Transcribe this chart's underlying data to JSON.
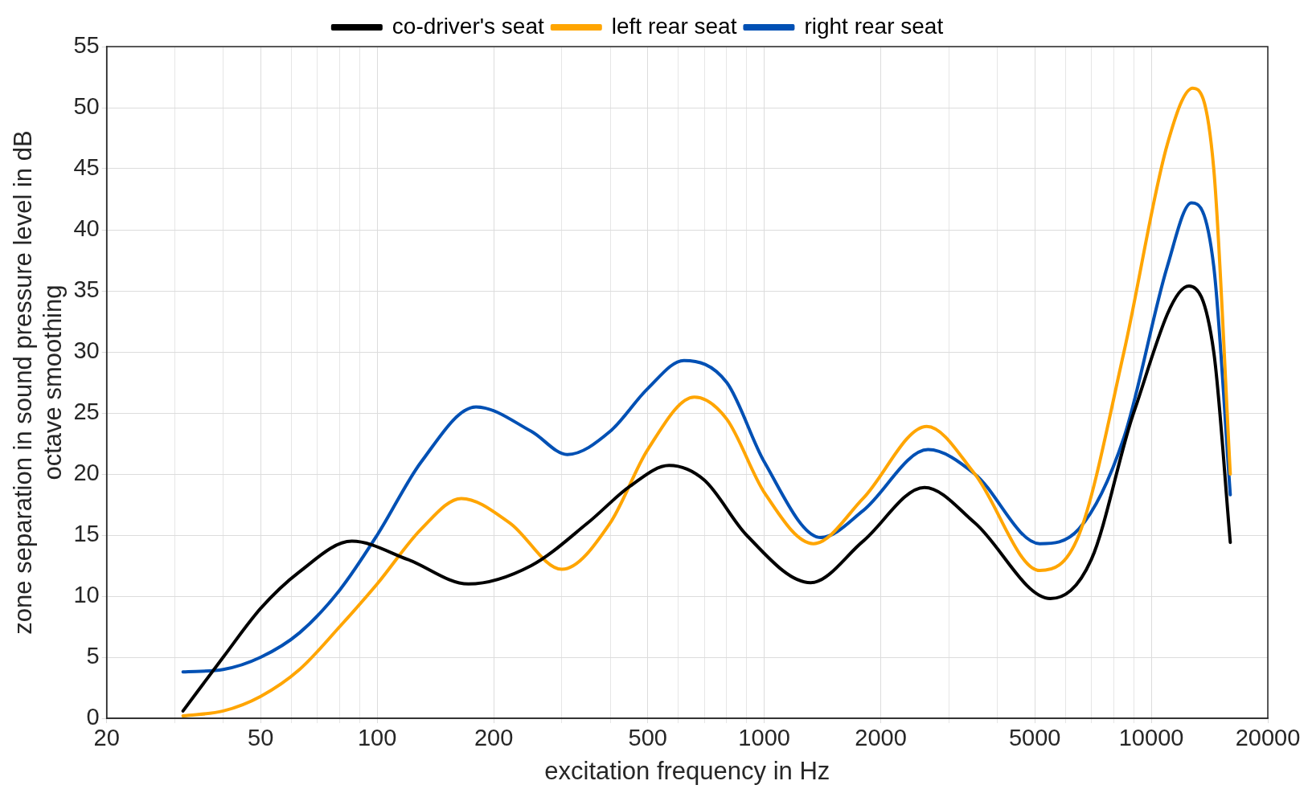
{
  "chart_data": {
    "type": "line",
    "xlabel": "excitation frequency in Hz",
    "ylabel": "zone separation in sound pressure level in dB\noctave smoothing",
    "log": "x",
    "grid": true,
    "legend": "top",
    "marker": "none",
    "line_style": "solid",
    "xlim": [
      20,
      20000
    ],
    "xticks": [
      20,
      {
        "value": 30,
        "label": null
      },
      {
        "value": 40,
        "label": null
      },
      50,
      {
        "value": 60,
        "label": null
      },
      {
        "value": 70,
        "label": null
      },
      {
        "value": 80,
        "label": null
      },
      {
        "value": 90,
        "label": null
      },
      100,
      200,
      {
        "value": 300,
        "label": null
      },
      {
        "value": 400,
        "label": null
      },
      500,
      {
        "value": 600,
        "label": null
      },
      {
        "value": 700,
        "label": null
      },
      {
        "value": 800,
        "label": null
      },
      {
        "value": 900,
        "label": null
      },
      1000,
      2000,
      {
        "value": 3000,
        "label": null
      },
      {
        "value": 4000,
        "label": null
      },
      5000,
      {
        "value": 6000,
        "label": null
      },
      {
        "value": 7000,
        "label": null
      },
      {
        "value": 8000,
        "label": null
      },
      {
        "value": 9000,
        "label": null
      },
      10000,
      20000
    ],
    "ylim": [
      0,
      55
    ],
    "yticks": [
      0,
      5,
      10,
      15,
      20,
      25,
      30,
      35,
      40,
      45,
      50,
      55
    ],
    "series": [
      {
        "name": "co-driver's seat",
        "color": "#000000",
        "x": [
          31.5,
          40,
          50,
          63,
          86,
          120,
          172,
          250,
          350,
          450,
          568,
          700,
          900,
          1318,
          1800,
          2594,
          3500,
          5487,
          7000,
          9000,
          12517,
          14500,
          16000
        ],
        "values": [
          0.6,
          5,
          9,
          12,
          14.5,
          13,
          11,
          12.5,
          16,
          19,
          20.7,
          19.5,
          15,
          11.1,
          14.5,
          18.9,
          16,
          9.8,
          13,
          25,
          35.4,
          30,
          14.4
        ]
      },
      {
        "name": "left rear seat",
        "color": "#ffa500",
        "x": [
          31.5,
          40,
          50,
          63,
          80,
          100,
          130,
          165,
          220,
          300,
          400,
          500,
          660,
          800,
          1000,
          1340,
          1800,
          2630,
          3500,
          5150,
          6500,
          8500,
          11000,
          12800,
          14500,
          16000
        ],
        "values": [
          0.2,
          0.6,
          1.8,
          4,
          7.5,
          11,
          15.5,
          18,
          16,
          12.2,
          16,
          22,
          26.3,
          24.5,
          18.5,
          14.3,
          18,
          23.9,
          20,
          12.1,
          15,
          30,
          47,
          51.6,
          45,
          20
        ]
      },
      {
        "name": "right rear seat",
        "color": "#0050b4",
        "x": [
          31.5,
          40,
          50,
          63,
          80,
          100,
          130,
          180,
          250,
          310,
          400,
          500,
          620,
          800,
          1000,
          1400,
          1800,
          2650,
          3500,
          5150,
          6500,
          8500,
          11000,
          12700,
          14500,
          16000
        ],
        "values": [
          3.8,
          4,
          5,
          7,
          10.5,
          15,
          21,
          25.5,
          23.5,
          21.6,
          23.5,
          27,
          29.3,
          27.5,
          21,
          14.8,
          17,
          22,
          20,
          14.3,
          15.5,
          23,
          37,
          42.2,
          37,
          18.3
        ]
      }
    ]
  }
}
